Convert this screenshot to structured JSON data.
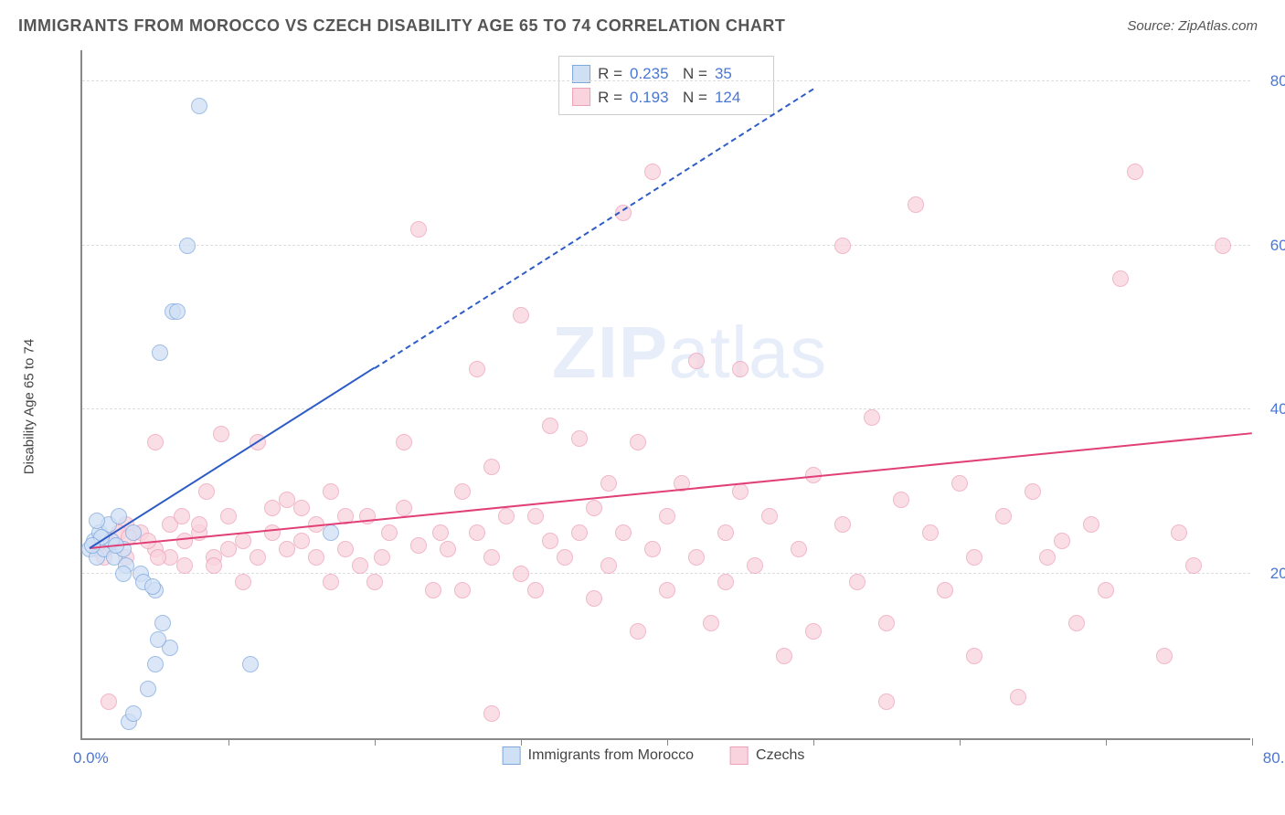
{
  "header": {
    "title": "IMMIGRANTS FROM MOROCCO VS CZECH DISABILITY AGE 65 TO 74 CORRELATION CHART",
    "source_prefix": "Source: ",
    "source_name": "ZipAtlas.com"
  },
  "watermark": {
    "bold": "ZIP",
    "rest": "atlas"
  },
  "chart": {
    "type": "scatter",
    "ylabel": "Disability Age 65 to 74",
    "xlim": [
      0,
      80
    ],
    "ylim": [
      0,
      84
    ],
    "ytick_labels": [
      "20.0%",
      "40.0%",
      "60.0%",
      "80.0%"
    ],
    "ytick_values": [
      20,
      40,
      60,
      80
    ],
    "xorigin_label": "0.0%",
    "xmax_label": "80.0%",
    "xtick_values": [
      10,
      20,
      30,
      40,
      50,
      60,
      70,
      80
    ],
    "background_color": "#ffffff",
    "grid_color": "#dddddd",
    "axis_color": "#888888",
    "tick_label_color": "#4a77d4",
    "marker_radius": 9,
    "series": {
      "morocco": {
        "label": "Immigrants from Morocco",
        "fill": "#cfe0f5",
        "stroke": "#7fa8dd",
        "fill_opacity": 0.75,
        "trend_color": "#2e5cc7",
        "trend_width": 2.5,
        "trend_solid": {
          "x1": 0.5,
          "y1": 23,
          "x2": 20,
          "y2": 45
        },
        "trend_dash": {
          "x1": 20,
          "y1": 45,
          "x2": 50,
          "y2": 79
        },
        "R": "0.235",
        "N": "35",
        "points": [
          [
            0.5,
            23
          ],
          [
            0.8,
            24
          ],
          [
            1.0,
            22
          ],
          [
            1.2,
            25
          ],
          [
            1.5,
            23
          ],
          [
            1.8,
            26
          ],
          [
            2.0,
            24
          ],
          [
            2.2,
            22
          ],
          [
            2.5,
            27
          ],
          [
            2.8,
            23
          ],
          [
            3.0,
            21
          ],
          [
            3.5,
            25
          ],
          [
            4.0,
            20
          ],
          [
            4.2,
            19
          ],
          [
            5.0,
            18
          ],
          [
            5.5,
            14
          ],
          [
            6.0,
            11
          ],
          [
            6.2,
            52
          ],
          [
            6.5,
            52
          ],
          [
            5.3,
            47
          ],
          [
            7.2,
            60
          ],
          [
            8.0,
            77
          ],
          [
            3.2,
            2
          ],
          [
            3.5,
            3
          ],
          [
            4.5,
            6
          ],
          [
            5.0,
            9
          ],
          [
            5.2,
            12
          ],
          [
            11.5,
            9
          ],
          [
            17.0,
            25
          ],
          [
            1.0,
            26.5
          ],
          [
            1.3,
            24.5
          ],
          [
            0.7,
            23.5
          ],
          [
            2.8,
            20
          ],
          [
            4.8,
            18.5
          ],
          [
            2.3,
            23.5
          ]
        ]
      },
      "czech": {
        "label": "Czechs",
        "fill": "#f9d4de",
        "stroke": "#eda0b8",
        "fill_opacity": 0.75,
        "trend_color": "#e13f77",
        "trend_width": 2.5,
        "trend_solid": {
          "x1": 0.5,
          "y1": 23,
          "x2": 80,
          "y2": 37
        },
        "R": "0.193",
        "N": "124",
        "points": [
          [
            1,
            23
          ],
          [
            2,
            24
          ],
          [
            3,
            22
          ],
          [
            4,
            25
          ],
          [
            5,
            23
          ],
          [
            6,
            22
          ],
          [
            7,
            24
          ],
          [
            8,
            25
          ],
          [
            9,
            22
          ],
          [
            10,
            23
          ],
          [
            11,
            24
          ],
          [
            12,
            22
          ],
          [
            13,
            25
          ],
          [
            14,
            23
          ],
          [
            12,
            36
          ],
          [
            14,
            29
          ],
          [
            15,
            28
          ],
          [
            16,
            22
          ],
          [
            17,
            30
          ],
          [
            18,
            23
          ],
          [
            19,
            21
          ],
          [
            20,
            19
          ],
          [
            21,
            25
          ],
          [
            22,
            36
          ],
          [
            22,
            28
          ],
          [
            23,
            62
          ],
          [
            24,
            18
          ],
          [
            25,
            23
          ],
          [
            26,
            30
          ],
          [
            26,
            18
          ],
          [
            27,
            25
          ],
          [
            27,
            45
          ],
          [
            28,
            33
          ],
          [
            28,
            22
          ],
          [
            29,
            27
          ],
          [
            30,
            51.5
          ],
          [
            30,
            20
          ],
          [
            31,
            27
          ],
          [
            31,
            18
          ],
          [
            32,
            38
          ],
          [
            32,
            24
          ],
          [
            33,
            22
          ],
          [
            34,
            36.5
          ],
          [
            34,
            25
          ],
          [
            35,
            28
          ],
          [
            35,
            17
          ],
          [
            36,
            31
          ],
          [
            36,
            21
          ],
          [
            37,
            64
          ],
          [
            37,
            25
          ],
          [
            38,
            36
          ],
          [
            38,
            13
          ],
          [
            39,
            69
          ],
          [
            39,
            23
          ],
          [
            40,
            27
          ],
          [
            40,
            18
          ],
          [
            41,
            31
          ],
          [
            42,
            22
          ],
          [
            42,
            46
          ],
          [
            43,
            14
          ],
          [
            44,
            25
          ],
          [
            44,
            19
          ],
          [
            45,
            30
          ],
          [
            46,
            21
          ],
          [
            47,
            27
          ],
          [
            48,
            10
          ],
          [
            49,
            23
          ],
          [
            50,
            32
          ],
          [
            50,
            13
          ],
          [
            52,
            26
          ],
          [
            53,
            19
          ],
          [
            54,
            39
          ],
          [
            55,
            14
          ],
          [
            55,
            4.5
          ],
          [
            56,
            29
          ],
          [
            57,
            65
          ],
          [
            58,
            25
          ],
          [
            59,
            18
          ],
          [
            60,
            31
          ],
          [
            61,
            22
          ],
          [
            61,
            10
          ],
          [
            63,
            27
          ],
          [
            64,
            5
          ],
          [
            65,
            30
          ],
          [
            66,
            22
          ],
          [
            67,
            24
          ],
          [
            68,
            14
          ],
          [
            69,
            26
          ],
          [
            70,
            18
          ],
          [
            71,
            56
          ],
          [
            72,
            69
          ],
          [
            74,
            10
          ],
          [
            75,
            25
          ],
          [
            76,
            21
          ],
          [
            78,
            60
          ],
          [
            8,
            26
          ],
          [
            9,
            21
          ],
          [
            10,
            27
          ],
          [
            11,
            19
          ],
          [
            13,
            28
          ],
          [
            15,
            24
          ],
          [
            16,
            26
          ],
          [
            17,
            19
          ],
          [
            18,
            27
          ],
          [
            1.8,
            4.5
          ],
          [
            6,
            26
          ],
          [
            7,
            21
          ],
          [
            8.5,
            30
          ],
          [
            9.5,
            37
          ],
          [
            3,
            26
          ],
          [
            4.5,
            24
          ],
          [
            5.2,
            22
          ],
          [
            6.8,
            27
          ],
          [
            2.5,
            25
          ],
          [
            1.5,
            22
          ],
          [
            2,
            23.5
          ],
          [
            3.2,
            24.5
          ],
          [
            5,
            36
          ],
          [
            28,
            3
          ],
          [
            45,
            45
          ],
          [
            23,
            23.5
          ],
          [
            24.5,
            25
          ],
          [
            19.5,
            27
          ],
          [
            20.5,
            22
          ],
          [
            52,
            60
          ]
        ]
      }
    }
  }
}
